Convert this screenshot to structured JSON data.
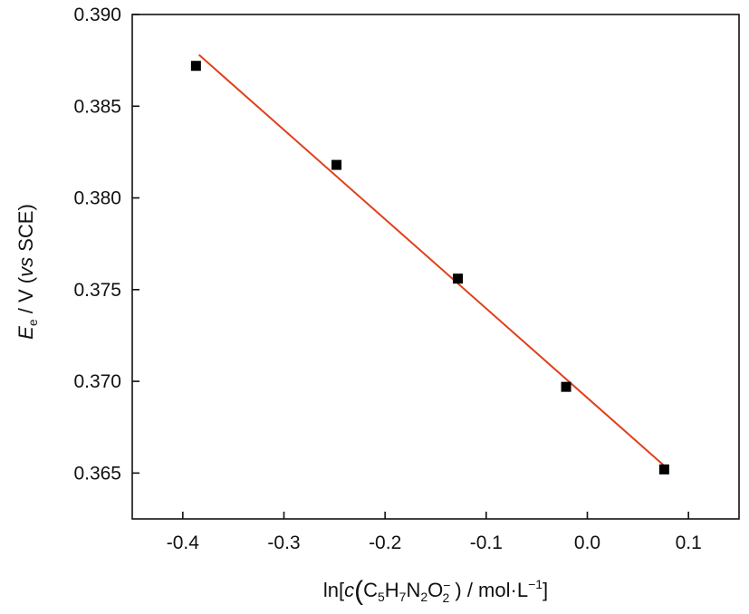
{
  "chart_data": {
    "type": "scatter",
    "title": "",
    "xlabel": {
      "prefix": "ln[",
      "c": "c",
      "formula": [
        {
          "t": "C",
          "sub": "5"
        },
        {
          "t": "H",
          "sub": "7"
        },
        {
          "t": "N",
          "sub": "2"
        },
        {
          "t": "O",
          "sub": "2",
          "sup": "−"
        }
      ],
      "unit": " ) / mol·L",
      "unit_exp": "−1",
      "suffix": "]"
    },
    "ylabel": {
      "symbol": "E",
      "symbol_sub": "e",
      "unit": " / V (",
      "vs": "vs",
      "ref": " SCE)"
    },
    "xlim": [
      -0.45,
      0.15
    ],
    "ylim": [
      0.3625,
      0.39
    ],
    "xticks": [
      {
        "value": -0.4,
        "label": "-0.4"
      },
      {
        "value": -0.3,
        "label": "-0.3"
      },
      {
        "value": -0.2,
        "label": "-0.2"
      },
      {
        "value": -0.1,
        "label": "-0.1"
      },
      {
        "value": 0.0,
        "label": "0.0"
      },
      {
        "value": 0.1,
        "label": "0.1"
      }
    ],
    "yticks": [
      {
        "value": 0.365,
        "label": "0.365"
      },
      {
        "value": 0.37,
        "label": "0.370"
      },
      {
        "value": 0.375,
        "label": "0.375"
      },
      {
        "value": 0.38,
        "label": "0.380"
      },
      {
        "value": 0.385,
        "label": "0.385"
      },
      {
        "value": 0.39,
        "label": "0.390"
      }
    ],
    "grid": false,
    "points": [
      {
        "x": -0.387,
        "y": 0.3872
      },
      {
        "x": -0.248,
        "y": 0.3818
      },
      {
        "x": -0.128,
        "y": 0.3756
      },
      {
        "x": -0.021,
        "y": 0.3697
      },
      {
        "x": 0.076,
        "y": 0.3652
      }
    ],
    "marker_color": "#000000",
    "fit_line": {
      "x": [
        -0.384,
        0.076
      ],
      "y": [
        0.3878,
        0.3654
      ],
      "color": "#e0401a"
    }
  }
}
